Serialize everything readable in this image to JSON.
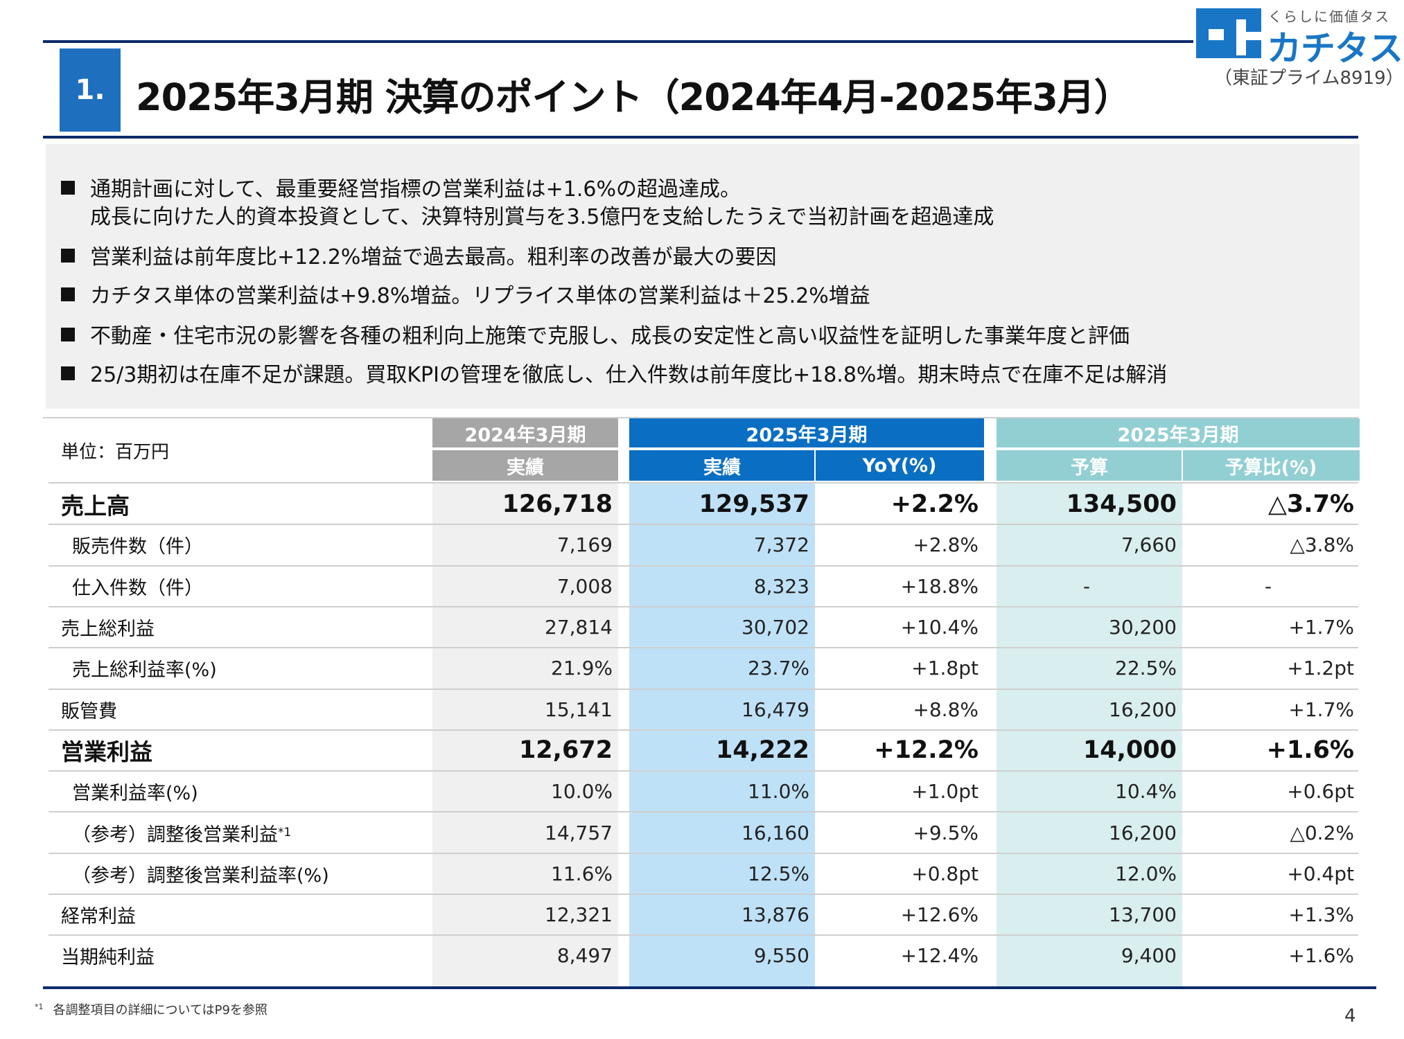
{
  "header": {
    "section_number": "1.",
    "title": "2025年3月期 決算のポイント（2024年4月-2025年3月）"
  },
  "logo": {
    "tagline": "くらしに価値タス",
    "name": "カチタス",
    "listing": "（東証プライム8919）",
    "brand_color": "#1976c6",
    "icon": "kachitas-logo-icon"
  },
  "bullets": [
    {
      "text": "通期計画に対して、最重要経営指標の営業利益は+1.6%の超過達成。",
      "continuation": "成長に向けた人的資本投資として、決算特別賞与を3.5億円を支給したうえで当初計画を超過達成"
    },
    {
      "text": "営業利益は前年度比+12.2%増益で過去最高。粗利率の改善が最大の要因"
    },
    {
      "text": "カチタス単体の営業利益は+9.8%増益。リプライス単体の営業利益は＋25.2%増益"
    },
    {
      "text": "不動産・住宅市況の影響を各種の粗利向上施策で克服し、成長の安定性と高い収益性を証明した事業年度と評価"
    },
    {
      "text": "25/3期初は在庫不足が課題。買取KPIの管理を徹底し、仕入件数は前年度比+18.8%増。期末時点で在庫不足は解消"
    }
  ],
  "table": {
    "unit_label": "単位：百万円",
    "groups": [
      {
        "label": "2024年3月期",
        "color": "#a6a6a6"
      },
      {
        "label": "2025年3月期",
        "color": "#0a6fc2"
      },
      {
        "label": "2025年3月期",
        "color": "#92cfd3"
      }
    ],
    "subheaders": [
      {
        "label": "実績",
        "color": "#a6a6a6"
      },
      {
        "label": "実績",
        "color": "#0a6fc2"
      },
      {
        "label": "YoY(%)",
        "color": "#0a6fc2"
      },
      {
        "label": "予算",
        "color": "#92cfd3"
      },
      {
        "label": "予算比(%)",
        "color": "#92cfd3"
      }
    ],
    "rows": [
      {
        "label": "売上高",
        "bold": true,
        "indent": false,
        "footnote": "",
        "values": [
          "126,718",
          "129,537",
          "+2.2%",
          "134,500",
          "△3.7%"
        ]
      },
      {
        "label": "販売件数（件）",
        "bold": false,
        "indent": true,
        "footnote": "",
        "values": [
          "7,169",
          "7,372",
          "+2.8%",
          "7,660",
          "△3.8%"
        ]
      },
      {
        "label": "仕入件数（件）",
        "bold": false,
        "indent": true,
        "footnote": "",
        "values": [
          "7,008",
          "8,323",
          "+18.8%",
          "-",
          "-"
        ]
      },
      {
        "label": "売上総利益",
        "bold": false,
        "indent": false,
        "footnote": "",
        "values": [
          "27,814",
          "30,702",
          "+10.4%",
          "30,200",
          "+1.7%"
        ]
      },
      {
        "label": "売上総利益率(%)",
        "bold": false,
        "indent": true,
        "footnote": "",
        "values": [
          "21.9%",
          "23.7%",
          "+1.8pt",
          "22.5%",
          "+1.2pt"
        ]
      },
      {
        "label": "販管費",
        "bold": false,
        "indent": false,
        "footnote": "",
        "values": [
          "15,141",
          "16,479",
          "+8.8%",
          "16,200",
          "+1.7%"
        ]
      },
      {
        "label": "営業利益",
        "bold": true,
        "indent": false,
        "footnote": "",
        "values": [
          "12,672",
          "14,222",
          "+12.2%",
          "14,000",
          "+1.6%"
        ]
      },
      {
        "label": "営業利益率(%)",
        "bold": false,
        "indent": true,
        "footnote": "",
        "values": [
          "10.0%",
          "11.0%",
          "+1.0pt",
          "10.4%",
          "+0.6pt"
        ]
      },
      {
        "label": "（参考）調整後営業利益",
        "bold": false,
        "indent": true,
        "footnote": "*1",
        "values": [
          "14,757",
          "16,160",
          "+9.5%",
          "16,200",
          "△0.2%"
        ]
      },
      {
        "label": "（参考）調整後営業利益率(%)",
        "bold": false,
        "indent": true,
        "footnote": "",
        "values": [
          "11.6%",
          "12.5%",
          "+0.8pt",
          "12.0%",
          "+0.4pt"
        ]
      },
      {
        "label": "経常利益",
        "bold": false,
        "indent": false,
        "footnote": "",
        "values": [
          "12,321",
          "13,876",
          "+12.6%",
          "13,700",
          "+1.3%"
        ]
      },
      {
        "label": "当期純利益",
        "bold": false,
        "indent": false,
        "footnote": "",
        "values": [
          "8,497",
          "9,550",
          "+12.4%",
          "9,400",
          "+1.6%"
        ]
      }
    ],
    "column_backgrounds": [
      "#f0f0f0",
      "#bfe1f7",
      "#ffffff",
      "#d9eeee",
      "#ffffff"
    ]
  },
  "footnote": {
    "mark": "*1",
    "text": "各調整項目の詳細についてはP9を参照"
  },
  "page_number": "4"
}
